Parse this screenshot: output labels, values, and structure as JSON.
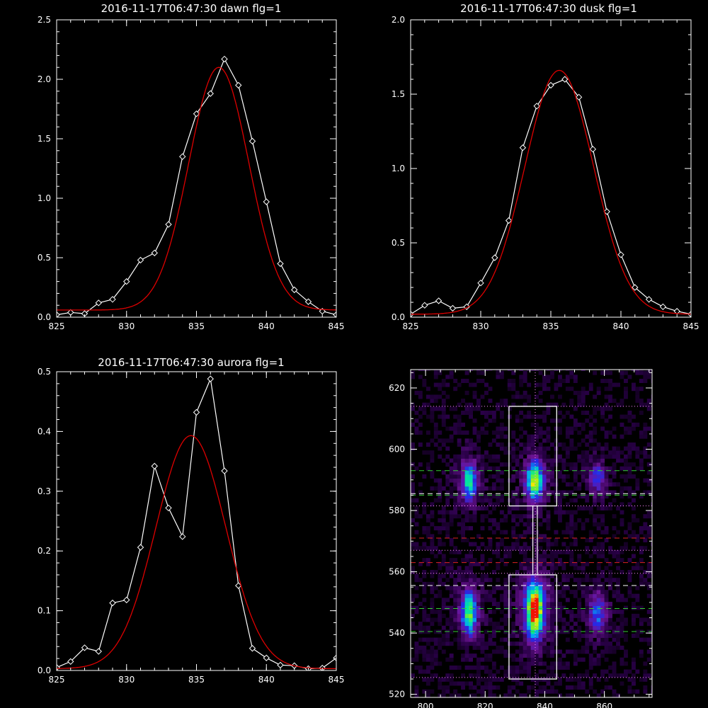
{
  "chart_data": [
    {
      "type": "line",
      "title": "2016-11-17T06:47:30 dawn flg=1",
      "xlim": [
        825,
        845
      ],
      "ylim": [
        0,
        2.5
      ],
      "xticks": [
        "825",
        "830",
        "835",
        "840",
        "845"
      ],
      "yticks": [
        "0.0",
        "0.5",
        "1.0",
        "1.5",
        "2.0",
        "2.5"
      ],
      "series": [
        {
          "style": "data-diamonds",
          "color": "#ffffff",
          "x": [
            825,
            826,
            827,
            828,
            829,
            830,
            831,
            832,
            833,
            834,
            835,
            836,
            837,
            838,
            839,
            840,
            841,
            842,
            843,
            844,
            845
          ],
          "y": [
            0.02,
            0.04,
            0.03,
            0.12,
            0.15,
            0.3,
            0.48,
            0.54,
            0.78,
            1.35,
            1.71,
            1.88,
            2.17,
            1.95,
            1.48,
            0.97,
            0.45,
            0.23,
            0.13,
            0.05,
            0.02
          ]
        },
        {
          "style": "gaussian-fit",
          "color": "#dd0000",
          "gaussian": {
            "amplitude": 2.04,
            "center": 836.6,
            "sigma": 2.15,
            "offset": 0.06
          }
        }
      ]
    },
    {
      "type": "line",
      "title": "2016-11-17T06:47:30 dusk flg=1",
      "xlim": [
        825,
        845
      ],
      "ylim": [
        0,
        2.0
      ],
      "xticks": [
        "825",
        "830",
        "835",
        "840",
        "845"
      ],
      "yticks": [
        "0.0",
        "0.5",
        "1.0",
        "1.5",
        "2.0"
      ],
      "series": [
        {
          "style": "data-diamonds",
          "color": "#ffffff",
          "x": [
            825,
            826,
            827,
            828,
            829,
            830,
            831,
            832,
            833,
            834,
            835,
            836,
            837,
            838,
            839,
            840,
            841,
            842,
            843,
            844,
            845
          ],
          "y": [
            0.02,
            0.08,
            0.11,
            0.06,
            0.07,
            0.23,
            0.4,
            0.65,
            1.14,
            1.42,
            1.56,
            1.6,
            1.48,
            1.13,
            0.71,
            0.42,
            0.2,
            0.12,
            0.07,
            0.04,
            0.02
          ]
        },
        {
          "style": "gaussian-fit",
          "color": "#dd0000",
          "gaussian": {
            "amplitude": 1.64,
            "center": 835.6,
            "sigma": 2.45,
            "offset": 0.02
          }
        }
      ]
    },
    {
      "type": "line",
      "title": "2016-11-17T06:47:30 aurora flg=1",
      "xlim": [
        825,
        845
      ],
      "ylim": [
        0,
        0.5
      ],
      "xticks": [
        "825",
        "830",
        "835",
        "840",
        "845"
      ],
      "yticks": [
        "0.0",
        "0.1",
        "0.2",
        "0.3",
        "0.4",
        "0.5"
      ],
      "series": [
        {
          "style": "data-diamonds",
          "color": "#ffffff",
          "x": [
            825,
            826,
            827,
            828,
            829,
            830,
            831,
            832,
            833,
            834,
            835,
            836,
            837,
            838,
            839,
            840,
            841,
            842,
            843,
            844,
            845
          ],
          "y": [
            0.005,
            0.015,
            0.038,
            0.032,
            0.113,
            0.118,
            0.206,
            0.342,
            0.272,
            0.224,
            0.432,
            0.488,
            0.334,
            0.142,
            0.037,
            0.021,
            0.009,
            0.008,
            0.003,
            0.004,
            0.021
          ]
        },
        {
          "style": "gaussian-fit",
          "color": "#dd0000",
          "gaussian": {
            "amplitude": 0.39,
            "center": 834.6,
            "sigma": 2.5,
            "offset": 0.003
          }
        }
      ]
    },
    {
      "type": "heatmap",
      "title": "",
      "xlim": [
        795,
        876
      ],
      "ylim": [
        519,
        626
      ],
      "xticks": [
        "800",
        "820",
        "840",
        "860"
      ],
      "yticks": [
        "520",
        "540",
        "560",
        "580",
        "600",
        "620"
      ],
      "colormap": "rainbow",
      "blobs": [
        {
          "x": 814,
          "y": 589,
          "sx": 1.7,
          "sy": 4.5,
          "peak": 0.55
        },
        {
          "x": 836,
          "y": 589,
          "sx": 1.9,
          "sy": 4.5,
          "peak": 0.72
        },
        {
          "x": 857,
          "y": 590,
          "sx": 1.8,
          "sy": 3.5,
          "peak": 0.33
        },
        {
          "x": 814,
          "y": 546,
          "sx": 1.8,
          "sy": 5.0,
          "peak": 0.62
        },
        {
          "x": 836,
          "y": 547,
          "sx": 2.0,
          "sy": 6.0,
          "peak": 0.95
        },
        {
          "x": 857,
          "y": 546,
          "sx": 1.9,
          "sy": 4.5,
          "peak": 0.38
        }
      ],
      "boxes": [
        {
          "x0": 828,
          "x1": 844,
          "y0": 581.5,
          "y1": 614
        },
        {
          "x0": 828,
          "x1": 844,
          "y0": 525,
          "y1": 559
        }
      ],
      "connector_x": [
        836,
        837.5
      ],
      "vertical_line_x": 836.8,
      "hlines": [
        {
          "y": 614,
          "color": "#ff88ff",
          "style": "dotted"
        },
        {
          "y": 593,
          "color": "#33cc33",
          "style": "dashed"
        },
        {
          "y": 585.5,
          "color": "#ffffff",
          "style": "dashed"
        },
        {
          "y": 585,
          "color": "#33cc33",
          "style": "dashed"
        },
        {
          "y": 581.5,
          "color": "#ff88ff",
          "style": "dotted"
        },
        {
          "y": 571,
          "color": "#dd2222",
          "style": "dashed"
        },
        {
          "y": 567,
          "color": "#ff88ff",
          "style": "dotted"
        },
        {
          "y": 563,
          "color": "#dd2222",
          "style": "dashed"
        },
        {
          "y": 559.5,
          "color": "#ff88ff",
          "style": "dotted"
        },
        {
          "y": 555.5,
          "color": "#ffffff",
          "style": "dashed"
        },
        {
          "y": 548,
          "color": "#33cc33",
          "style": "dashed"
        },
        {
          "y": 540.5,
          "color": "#33cc33",
          "style": "dashed"
        },
        {
          "y": 525.5,
          "color": "#ff88ff",
          "style": "dotted"
        }
      ]
    }
  ]
}
